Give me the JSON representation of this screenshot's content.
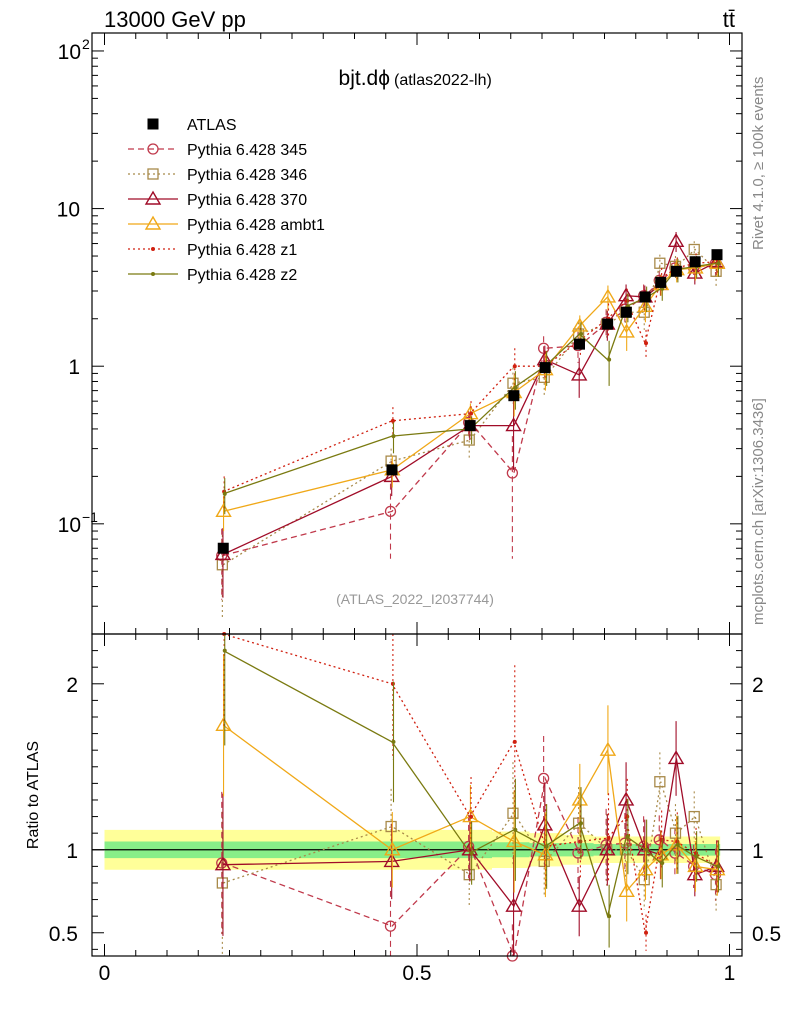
{
  "header": {
    "energy_label": "13000 GeV pp",
    "process_label": "tt̄"
  },
  "side_labels": {
    "rivet": "Rivet 4.1.0, ≥ 100k events",
    "mcplots": "mcplots.cern.ch [arXiv:1306.3436]"
  },
  "chart_data": {
    "type": "scatter",
    "title": "bjt.dϕ",
    "subtitle": "(atlas2022-lh)",
    "analysis_id": "(ATLAS_2022_I2037744)",
    "upper_y_scale": "log",
    "upper_ylim": [
      0.02,
      130
    ],
    "upper_y_ticks": [
      {
        "value": 0.1,
        "base": "10",
        "exp": "−1"
      },
      {
        "value": 1,
        "base": "1",
        "exp": ""
      },
      {
        "value": 10,
        "base": "10",
        "exp": ""
      },
      {
        "value": 100,
        "base": "10",
        "exp": "2"
      }
    ],
    "xlim": [
      -0.02,
      1.02
    ],
    "x_ticks": [
      {
        "value": 0,
        "label": "0"
      },
      {
        "value": 0.5,
        "label": "0.5"
      },
      {
        "value": 1,
        "label": "1"
      }
    ],
    "ratio_ylabel": "Ratio to ATLAS",
    "ratio_ylim": [
      0.36,
      2.3
    ],
    "ratio_y_ticks": [
      {
        "value": 0.5,
        "label": "0.5"
      },
      {
        "value": 1,
        "label": "1"
      },
      {
        "value": 2,
        "label": "2"
      }
    ],
    "x": [
      0.19,
      0.46,
      0.585,
      0.655,
      0.705,
      0.76,
      0.805,
      0.835,
      0.865,
      0.89,
      0.915,
      0.945,
      0.98
    ],
    "data": {
      "name": "ATLAS",
      "values": [
        0.07,
        0.22,
        0.42,
        0.65,
        0.98,
        1.38,
        1.85,
        2.2,
        2.75,
        3.4,
        4.0,
        4.6,
        5.1
      ],
      "ratio_band_inner": [
        0.05,
        0.05,
        0.05,
        0.045,
        0.04,
        0.04,
        0.035,
        0.035,
        0.035,
        0.035,
        0.035,
        0.035,
        0.035
      ],
      "ratio_band_outer": [
        0.12,
        0.12,
        0.12,
        0.11,
        0.1,
        0.09,
        0.08,
        0.08,
        0.08,
        0.08,
        0.08,
        0.08,
        0.08
      ]
    },
    "series": [
      {
        "name": "Pythia 6.428 345",
        "color": "#c0394b",
        "dash": "6,4",
        "marker": "circle",
        "values": [
          0.063,
          0.12,
          0.44,
          0.21,
          1.3,
          1.35,
          1.9,
          2.3,
          2.8,
          3.5,
          4.2,
          4.2,
          4.5
        ],
        "errors": [
          0.03,
          0.06,
          0.08,
          0.15,
          0.25,
          0.3,
          0.4,
          0.4,
          0.5,
          0.5,
          0.6,
          0.6,
          0.8
        ],
        "ratio": [
          0.92,
          0.54,
          1.02,
          0.32,
          1.43,
          0.98,
          1.03,
          1.04,
          1.02,
          1.06,
          0.98,
          0.9,
          0.85
        ]
      },
      {
        "name": "Pythia 6.428 346",
        "color": "#a88a4a",
        "dash": "2,3",
        "marker": "square",
        "values": [
          0.055,
          0.25,
          0.34,
          0.78,
          0.85,
          1.6,
          1.85,
          2.2,
          2.2,
          4.5,
          4.3,
          5.5,
          4.0
        ],
        "errors": [
          0.03,
          0.05,
          0.08,
          0.2,
          0.2,
          0.3,
          0.4,
          0.4,
          0.5,
          0.6,
          0.7,
          0.7,
          0.8
        ],
        "ratio": [
          0.8,
          1.14,
          0.85,
          1.22,
          0.93,
          1.16,
          1.0,
          1.0,
          0.82,
          1.41,
          1.1,
          1.2,
          0.79
        ]
      },
      {
        "name": "Pythia 6.428 370",
        "color": "#a00c28",
        "dash": "",
        "marker": "triangle",
        "values": [
          0.064,
          0.2,
          0.42,
          0.42,
          1.1,
          0.88,
          1.85,
          2.8,
          2.75,
          3.3,
          6.2,
          3.9,
          4.6
        ],
        "errors": [
          0.03,
          0.05,
          0.08,
          0.2,
          0.25,
          0.25,
          0.4,
          0.5,
          0.5,
          0.5,
          0.9,
          0.6,
          0.8
        ],
        "ratio": [
          0.91,
          0.93,
          1.0,
          0.66,
          1.15,
          0.66,
          1.0,
          1.3,
          1.0,
          0.97,
          1.55,
          0.85,
          0.9
        ]
      },
      {
        "name": "Pythia 6.428 ambt1",
        "color": "#f0a818",
        "dash": "",
        "marker": "triangle",
        "values": [
          0.12,
          0.22,
          0.5,
          0.68,
          0.95,
          1.8,
          2.75,
          1.65,
          2.4,
          3.3,
          4.1,
          4.2,
          4.5
        ],
        "errors": [
          0.03,
          0.05,
          0.08,
          0.2,
          0.25,
          0.3,
          0.5,
          0.4,
          0.5,
          0.5,
          0.7,
          0.7,
          0.8
        ],
        "ratio": [
          1.75,
          1.0,
          1.2,
          1.05,
          0.97,
          1.3,
          1.6,
          0.75,
          0.88,
          0.97,
          1.03,
          0.9,
          0.88
        ]
      },
      {
        "name": "Pythia 6.428 z1",
        "color": "#d02010",
        "dash": "2,3",
        "marker": "dot",
        "values": [
          0.16,
          0.45,
          0.5,
          1.0,
          1.0,
          1.45,
          2.0,
          2.6,
          1.4,
          3.6,
          4.2,
          4.5,
          4.6
        ],
        "errors": [
          0.04,
          0.1,
          0.1,
          0.3,
          0.25,
          0.3,
          0.5,
          0.5,
          0.3,
          0.6,
          0.7,
          0.7,
          0.8
        ],
        "ratio": [
          2.3,
          2.0,
          1.2,
          1.65,
          1.02,
          1.05,
          1.07,
          1.2,
          0.5,
          1.06,
          1.05,
          0.98,
          0.9
        ]
      },
      {
        "name": "Pythia 6.428 z2",
        "color": "#7a7a10",
        "dash": "",
        "marker": "dot",
        "values": [
          0.155,
          0.36,
          0.4,
          0.73,
          1.0,
          1.6,
          1.1,
          2.4,
          2.7,
          3.1,
          4.1,
          4.3,
          4.5
        ],
        "errors": [
          0.04,
          0.08,
          0.08,
          0.2,
          0.25,
          0.3,
          0.35,
          0.5,
          0.5,
          0.5,
          0.7,
          0.7,
          0.8
        ],
        "ratio": [
          2.2,
          1.65,
          0.98,
          1.12,
          1.02,
          1.16,
          0.6,
          1.08,
          1.0,
          0.92,
          1.03,
          0.96,
          0.9
        ]
      }
    ]
  }
}
